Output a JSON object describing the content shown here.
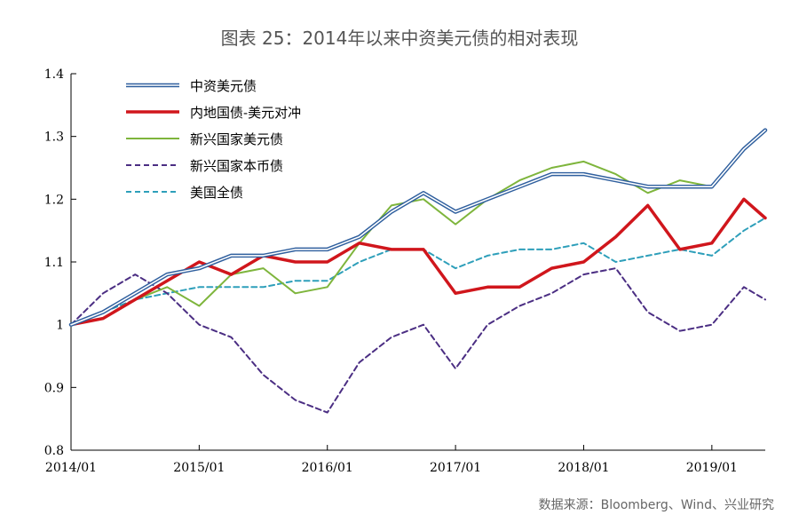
{
  "chart_data": {
    "type": "line",
    "title": "图表 25：2014年以来中资美元债的相对表现",
    "xlabel": "",
    "ylabel": "",
    "x_ticks": [
      "2014/01",
      "2015/01",
      "2016/01",
      "2017/01",
      "2018/01",
      "2019/01"
    ],
    "y_ticks": [
      "0.8",
      "0.9",
      "1",
      "1.1",
      "1.2",
      "1.3",
      "1.4"
    ],
    "ylim": [
      0.8,
      1.4
    ],
    "xlim": [
      "2014/01",
      "2019/06"
    ],
    "grid": false,
    "legend_position": "top-left",
    "x": [
      "2014/01",
      "2014/04",
      "2014/07",
      "2014/10",
      "2015/01",
      "2015/04",
      "2015/07",
      "2015/10",
      "2016/01",
      "2016/04",
      "2016/07",
      "2016/10",
      "2017/01",
      "2017/04",
      "2017/07",
      "2017/10",
      "2018/01",
      "2018/04",
      "2018/07",
      "2018/10",
      "2019/01",
      "2019/04",
      "2019/06"
    ],
    "series": [
      {
        "name": "中资美元债",
        "style": "double",
        "color": "#2f5f9e",
        "values": [
          1.0,
          1.02,
          1.05,
          1.08,
          1.09,
          1.11,
          1.11,
          1.12,
          1.12,
          1.14,
          1.18,
          1.21,
          1.18,
          1.2,
          1.22,
          1.24,
          1.24,
          1.23,
          1.22,
          1.22,
          1.22,
          1.28,
          1.31
        ]
      },
      {
        "name": "内地国债-美元对冲",
        "style": "solid-thick",
        "color": "#d0161c",
        "values": [
          1.0,
          1.01,
          1.04,
          1.07,
          1.1,
          1.08,
          1.11,
          1.1,
          1.1,
          1.13,
          1.12,
          1.12,
          1.05,
          1.06,
          1.06,
          1.09,
          1.1,
          1.14,
          1.19,
          1.12,
          1.13,
          1.2,
          1.17
        ]
      },
      {
        "name": "新兴国家美元债",
        "style": "solid",
        "color": "#7eb53c",
        "values": [
          1.0,
          1.01,
          1.04,
          1.06,
          1.03,
          1.08,
          1.09,
          1.05,
          1.06,
          1.13,
          1.19,
          1.2,
          1.16,
          1.2,
          1.23,
          1.25,
          1.26,
          1.24,
          1.21,
          1.23,
          1.22,
          1.28,
          1.31
        ]
      },
      {
        "name": "新兴国家本币债",
        "style": "dashed",
        "color": "#4b2e83",
        "values": [
          1.0,
          1.05,
          1.08,
          1.05,
          1.0,
          0.98,
          0.92,
          0.88,
          0.86,
          0.94,
          0.98,
          1.0,
          0.93,
          1.0,
          1.03,
          1.05,
          1.08,
          1.09,
          1.02,
          0.99,
          1.0,
          1.06,
          1.04
        ]
      },
      {
        "name": "美国全债",
        "style": "dashed",
        "color": "#2e9fba",
        "values": [
          1.0,
          1.02,
          1.04,
          1.05,
          1.06,
          1.06,
          1.06,
          1.07,
          1.07,
          1.1,
          1.12,
          1.12,
          1.09,
          1.11,
          1.12,
          1.12,
          1.13,
          1.1,
          1.11,
          1.12,
          1.11,
          1.15,
          1.17
        ]
      }
    ]
  },
  "source": "数据来源：Bloomberg、Wind、兴业研究"
}
